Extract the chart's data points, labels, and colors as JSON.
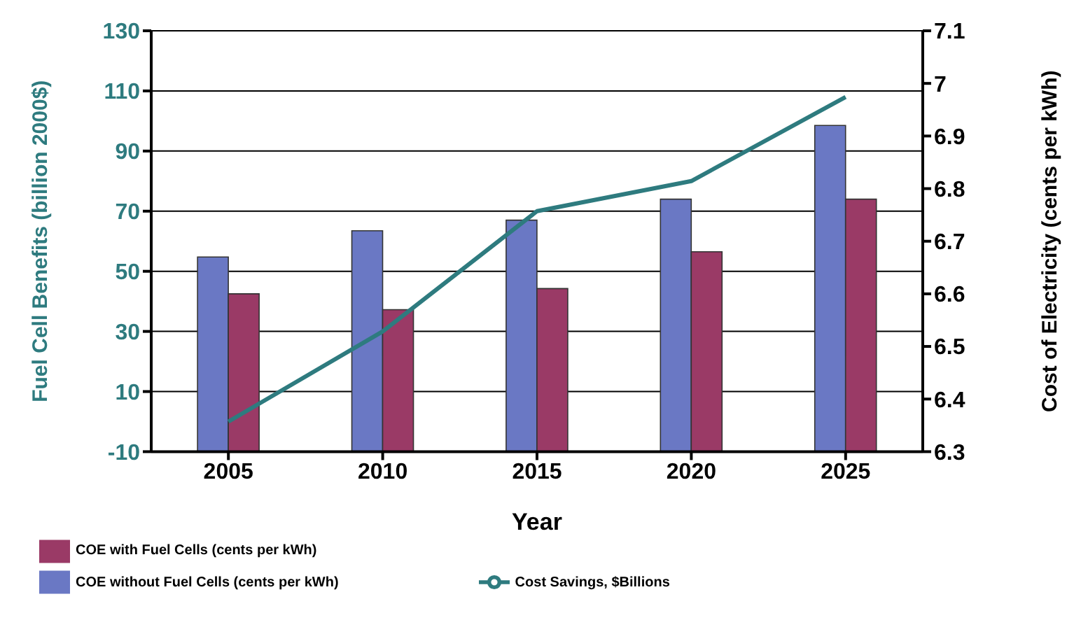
{
  "chart_data": {
    "type": "bar",
    "xlabel": "Year",
    "ylabel": "Fuel Cell Benefits (billion 2000$)",
    "y2label": "Cost of Electricity (cents per kWh)",
    "categories": [
      "2005",
      "2010",
      "2015",
      "2020",
      "2025"
    ],
    "series": [
      {
        "name": "Cost Savings, $Billions",
        "type": "line",
        "color": "#2e7b7f",
        "values": [
          0,
          30,
          70,
          80,
          108
        ]
      },
      {
        "name": "COE without Fuel Cells (cents per kWh)",
        "axis": "y2",
        "color": "#6a78c4",
        "values": [
          6.67,
          6.72,
          6.74,
          6.78,
          6.92
        ]
      },
      {
        "name": "COE with Fuel Cells (cents per kWh)",
        "axis": "y2",
        "color": "#9a3a66",
        "values": [
          6.6,
          6.57,
          6.61,
          6.68,
          6.78
        ]
      }
    ],
    "ylim": [
      -10,
      130
    ],
    "yticks": [
      -10,
      10,
      30,
      50,
      70,
      90,
      110,
      130
    ],
    "y2lim": [
      6.3,
      7.1
    ],
    "y2ticks": [
      6.3,
      6.4,
      6.5,
      6.6,
      6.7,
      6.8,
      6.9,
      7,
      7.1
    ],
    "grid": "y",
    "legend": "bottom",
    "marker": "none",
    "line_style": "solid"
  }
}
